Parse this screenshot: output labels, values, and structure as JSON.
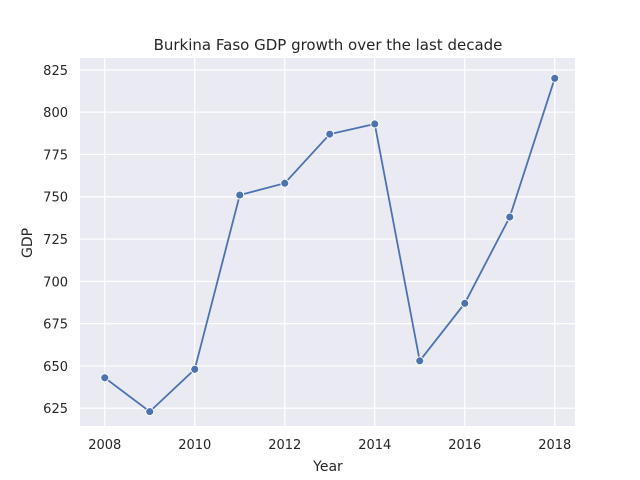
{
  "chart_data": {
    "type": "line",
    "title": "Burkina Faso GDP growth over the last decade",
    "xlabel": "Year",
    "ylabel": "GDP",
    "x": [
      2008,
      2009,
      2010,
      2011,
      2012,
      2013,
      2014,
      2015,
      2016,
      2017,
      2018
    ],
    "series": [
      {
        "values": [
          643,
          623,
          648,
          751,
          758,
          787,
          793,
          653,
          687,
          738,
          820
        ]
      }
    ],
    "xlim": [
      2007.45,
      2018.45
    ],
    "ylim": [
      614.5,
      832
    ],
    "xticks": [
      2008,
      2010,
      2012,
      2014,
      2016,
      2018
    ],
    "yticks": [
      625,
      650,
      675,
      700,
      725,
      750,
      775,
      800,
      825
    ],
    "grid": true,
    "legend": "none",
    "colors": {
      "line": "#4c72b0",
      "background": "#eaeaf2",
      "grid": "#ffffff",
      "text": "#262626"
    }
  }
}
